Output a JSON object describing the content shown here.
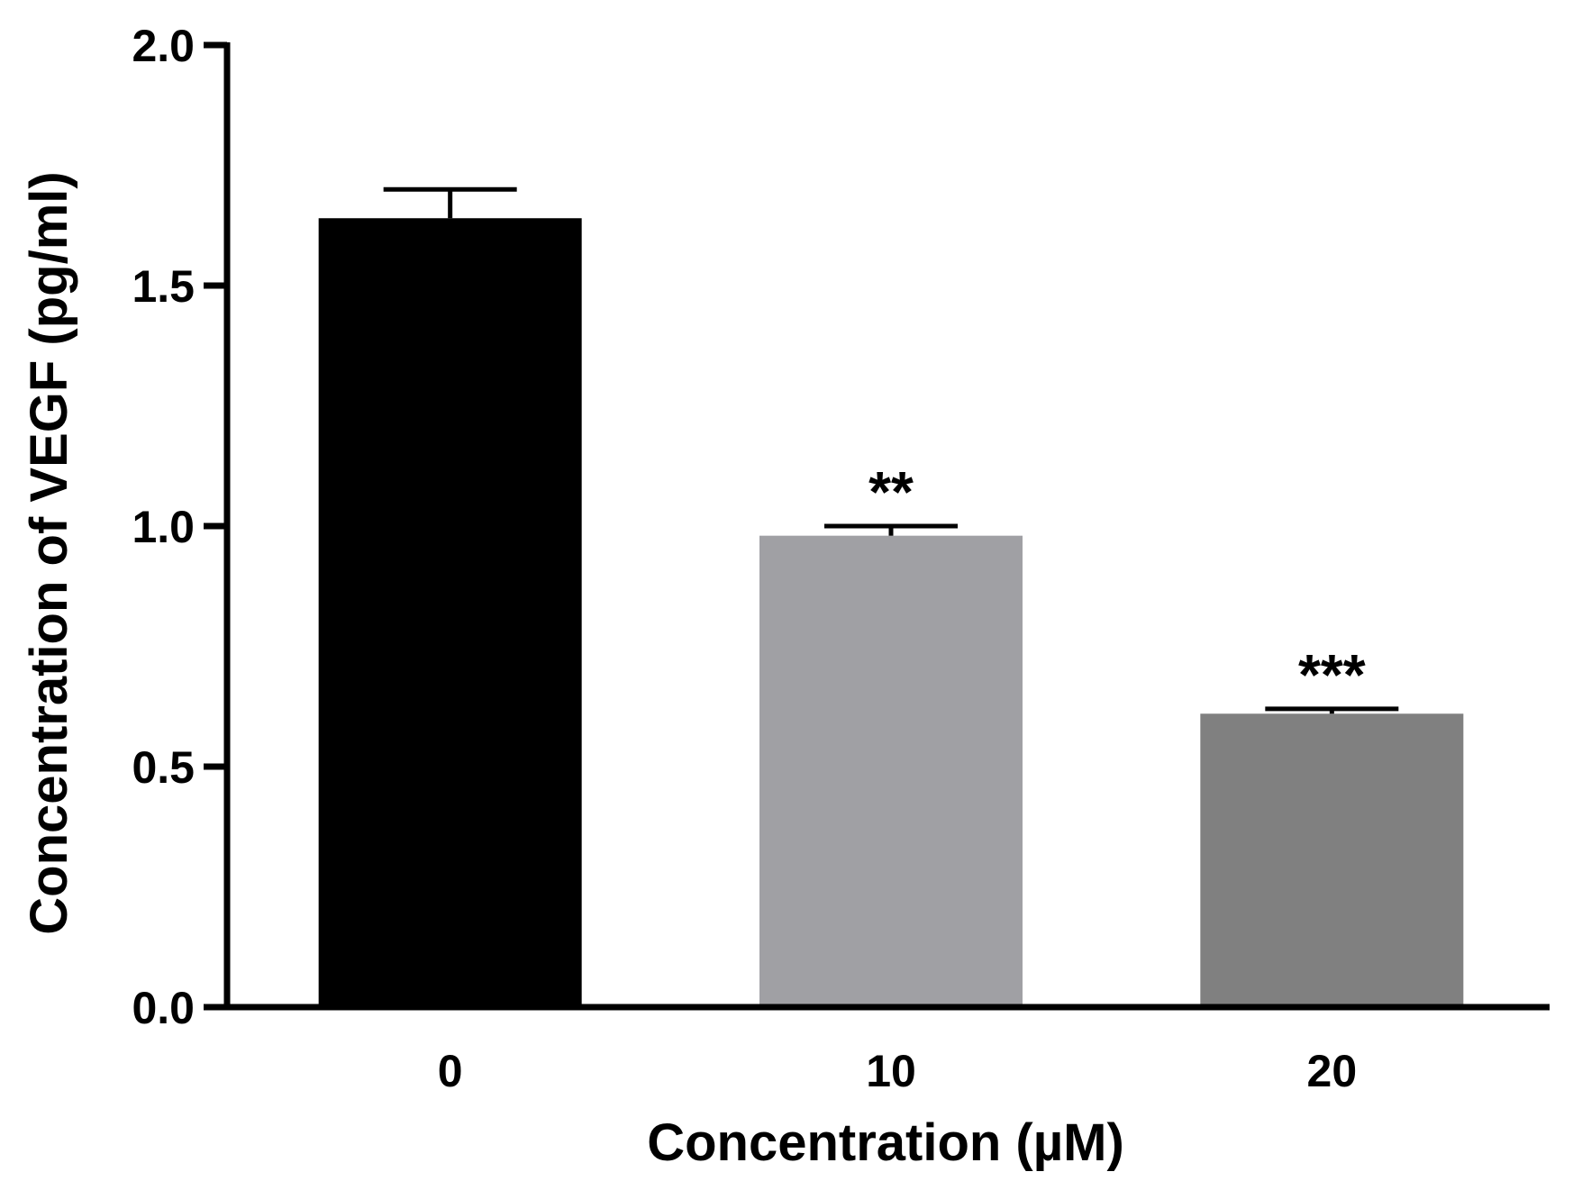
{
  "chart_data": {
    "type": "bar",
    "title": "",
    "xlabel": "Concentration (µM)",
    "ylabel": "Concentration of VEGF (pg/ml)",
    "ylim": [
      0,
      2.0
    ],
    "y_ticks": [
      0.0,
      0.5,
      1.0,
      1.5,
      2.0
    ],
    "y_tick_labels": [
      "0.0",
      "0.5",
      "1.0",
      "1.5",
      "2.0"
    ],
    "categories": [
      "0",
      "10",
      "20"
    ],
    "values": [
      1.64,
      0.98,
      0.61
    ],
    "error_upper": [
      1.7,
      1.0,
      0.62
    ],
    "annotations": [
      "",
      "**",
      "***"
    ],
    "colors": [
      "#000000",
      "#a0a0a4",
      "#808080"
    ],
    "grid": false,
    "legend": "none"
  }
}
